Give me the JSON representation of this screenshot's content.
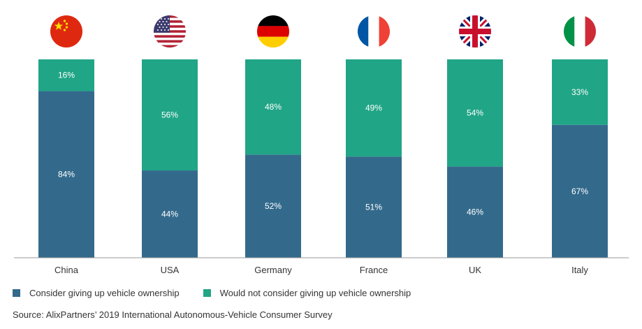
{
  "chart_data": {
    "type": "bar",
    "stacked": true,
    "categories": [
      "China",
      "USA",
      "Germany",
      "France",
      "UK",
      "Italy"
    ],
    "series": [
      {
        "name": "Consider giving up vehicle ownership",
        "values": [
          84,
          44,
          52,
          51,
          46,
          67
        ],
        "color": "#336a8c"
      },
      {
        "name": "Would not consider giving up vehicle ownership",
        "values": [
          16,
          56,
          48,
          49,
          54,
          33
        ],
        "color": "#20a586"
      }
    ],
    "value_suffix": "%",
    "ylim": [
      0,
      100
    ],
    "legend_position": "bottom-left",
    "source": "Source: AlixPartners’ 2019 International Autonomous-Vehicle Consumer Survey",
    "flags": [
      "china-flag-icon",
      "usa-flag-icon",
      "germany-flag-icon",
      "france-flag-icon",
      "uk-flag-icon",
      "italy-flag-icon"
    ]
  },
  "axis_color": "#999999"
}
